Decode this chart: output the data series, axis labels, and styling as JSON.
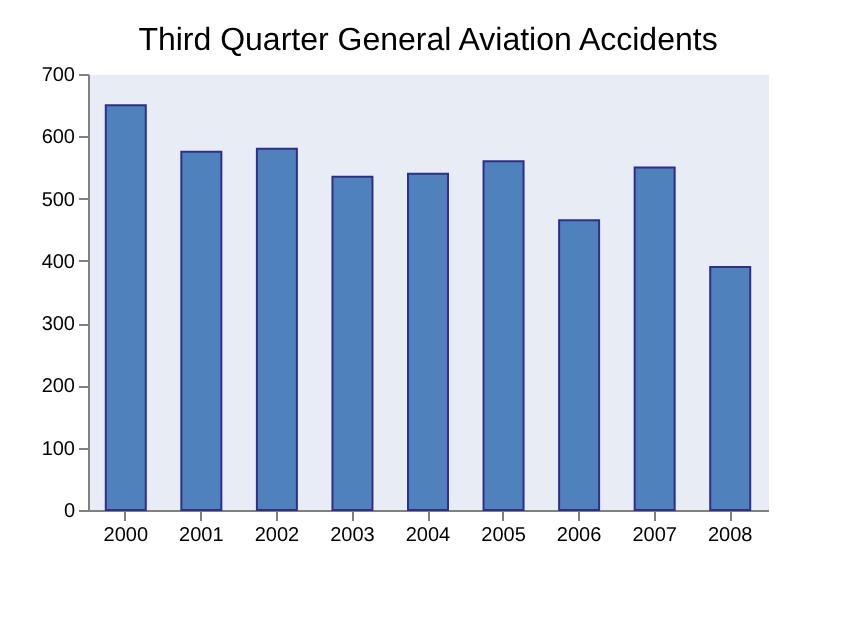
{
  "chart_data": {
    "type": "bar",
    "title": "Third Quarter General Aviation Accidents",
    "categories": [
      "2000",
      "2001",
      "2002",
      "2003",
      "2004",
      "2005",
      "2006",
      "2007",
      "2008"
    ],
    "values": [
      650,
      575,
      580,
      535,
      540,
      560,
      465,
      550,
      390
    ],
    "color": "#4f81bd",
    "ylim": [
      0,
      700
    ],
    "yticks": [
      0,
      100,
      200,
      300,
      400,
      500,
      600,
      700
    ],
    "grid": false
  }
}
